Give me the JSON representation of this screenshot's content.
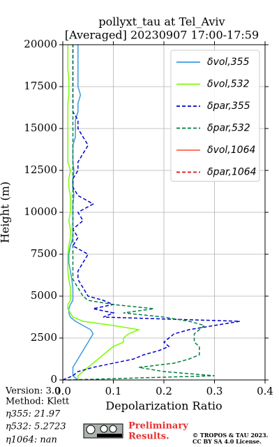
{
  "chart_data": {
    "type": "profile",
    "title": [
      "pollyxt_tau at Tel_Aviv",
      "[Averaged] 20230907 17:00-17:59"
    ],
    "xlabel": "Depolarization Ratio",
    "ylabel": "Height (m)",
    "y": [
      0,
      250,
      500,
      750,
      1000,
      1250,
      1500,
      1750,
      2000,
      2250,
      2500,
      2750,
      3000,
      3250,
      3500,
      3750,
      4000,
      4250,
      4500,
      4750,
      5000,
      5500,
      6000,
      6500,
      7000,
      7500,
      8000,
      8500,
      9000,
      9500,
      10000,
      10500,
      11000,
      11500,
      12000,
      12500,
      13000,
      13500,
      14000,
      14500,
      15000,
      15500,
      16000,
      16500,
      17000,
      17500,
      18000,
      18500,
      19000,
      19500,
      20000
    ],
    "xlim": [
      0,
      0.4
    ],
    "ylim": [
      0,
      20000
    ],
    "xticks": [
      {
        "value": 0,
        "label": "0.0"
      },
      0.1,
      0.2,
      0.3,
      0.4
    ],
    "yticks": [
      0,
      2500,
      5000,
      7500,
      10000,
      12500,
      15000,
      17500,
      20000
    ],
    "grid": true,
    "legend": "upper right",
    "series": [
      {
        "name": "δvol,355",
        "color": "#3a9be0",
        "dash": false,
        "values": [
          0.03,
          0.02,
          0.02,
          0.02,
          0.025,
          0.03,
          0.035,
          0.04,
          0.045,
          0.05,
          0.055,
          0.06,
          0.055,
          0.04,
          0.025,
          0.015,
          0.012,
          0.012,
          0.015,
          0.02,
          0.02,
          0.02,
          0.018,
          0.015,
          0.012,
          0.012,
          0.015,
          0.02,
          0.02,
          0.02,
          0.02,
          0.02,
          0.022,
          0.02,
          0.02,
          0.022,
          0.02,
          0.02,
          0.02,
          0.025,
          0.025,
          0.025,
          0.03,
          0.03,
          0.035,
          0.03,
          0.03,
          0.03,
          0.03,
          0.03,
          0.03
        ]
      },
      {
        "name": "δvol,532",
        "color": "#7cfc00",
        "dash": false,
        "values": [
          0.03,
          0.03,
          0.04,
          0.05,
          0.06,
          0.07,
          0.08,
          0.09,
          0.1,
          0.12,
          0.12,
          0.13,
          0.15,
          0.1,
          0.04,
          0.02,
          0.015,
          0.01,
          0.01,
          0.015,
          0.015,
          0.015,
          0.012,
          0.01,
          0.01,
          0.01,
          0.012,
          0.015,
          0.015,
          0.012,
          0.015,
          0.015,
          0.015,
          0.012,
          0.012,
          0.015,
          0.01,
          0.01,
          0.01,
          0.01,
          0.01,
          0.01,
          0.01,
          0.01,
          0.012,
          0.012,
          0.012,
          0.01,
          0.01,
          0.01,
          0.01
        ]
      },
      {
        "name": "δpar,355",
        "color": "#0000cc",
        "dash": true,
        "values": [
          0,
          0.02,
          0.03,
          0.06,
          0.1,
          0.14,
          0.16,
          0.19,
          0.21,
          0.2,
          0.21,
          0.22,
          0.25,
          0.3,
          0.35,
          0.08,
          0.1,
          0.06,
          0.1,
          0.08,
          0.05,
          0.04,
          0.03,
          0.03,
          0.04,
          0.05,
          0.02,
          0.03,
          0.02,
          0.04,
          0.03,
          0.06,
          0.03,
          0.02,
          0.02,
          0.03,
          0.03,
          0.04,
          0.05,
          0.04,
          0.03,
          0.03,
          0.02,
          0.02,
          0.02,
          0.02,
          0.02,
          0.02,
          0.02,
          0.02,
          0.02
        ]
      },
      {
        "name": "δpar,532",
        "color": "#007f3f",
        "dash": true,
        "values": [
          0.01,
          0.3,
          0.2,
          0.15,
          0.22,
          0.25,
          0.27,
          0.27,
          0.27,
          0.26,
          0.26,
          0.26,
          0.27,
          0.28,
          0.25,
          0.2,
          0.12,
          0.18,
          0.1,
          0.05,
          0.04,
          0.03,
          0.02,
          0.02,
          0.02,
          0.02,
          0.02,
          0.02,
          0.02,
          0.02,
          0.02,
          0.02,
          0.02,
          0.02,
          0.02,
          0.02,
          0.02,
          0.02,
          0.02,
          0.02,
          0.02,
          0.02,
          0.02,
          0.02,
          0.02,
          0.02,
          0.02,
          0.02,
          0.02,
          0.02,
          0.02
        ]
      },
      {
        "name": "δvol,1064",
        "color": "#ff6347",
        "dash": false,
        "values": [
          null,
          null,
          null,
          null,
          null,
          null,
          null,
          null,
          null,
          null,
          null,
          null,
          null,
          null,
          null,
          null,
          null,
          null,
          null,
          null,
          null,
          null,
          null,
          null,
          null,
          null,
          null,
          null,
          null,
          null,
          null,
          null,
          null,
          null,
          null,
          null,
          null,
          null,
          null,
          null,
          null,
          null,
          null,
          null,
          null,
          null,
          null,
          null,
          null,
          null,
          null
        ]
      },
      {
        "name": "δpar,1064",
        "color": "#dd1111",
        "dash": true,
        "values": [
          null,
          null,
          null,
          null,
          null,
          null,
          null,
          null,
          null,
          null,
          null,
          null,
          null,
          null,
          null,
          null,
          null,
          null,
          null,
          null,
          null,
          null,
          null,
          null,
          null,
          null,
          null,
          null,
          null,
          null,
          null,
          null,
          null,
          null,
          null,
          null,
          null,
          null,
          null,
          null,
          null,
          null,
          null,
          null,
          null,
          null,
          null,
          null,
          null,
          null,
          null
        ]
      }
    ]
  },
  "footer": {
    "info": [
      "Version: 3.0",
      "Method: Klett",
      "η355:  21.97",
      "η532: 5.2723",
      "η1064:    nan"
    ],
    "preliminary": [
      "Preliminary",
      "Results."
    ],
    "license": [
      "© TROPOS & TAU 2023.",
      "CC BY SA 4.0 License."
    ]
  }
}
